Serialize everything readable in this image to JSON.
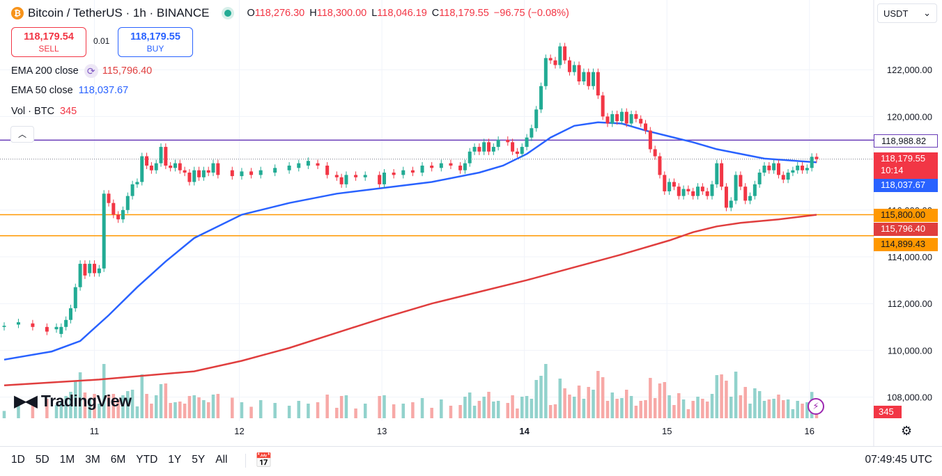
{
  "header": {
    "symbol": "Bitcoin / TetherUS · 1h · BINANCE",
    "logo_letter": "₿",
    "ohlc": [
      {
        "key": "O",
        "value": "118,276.30"
      },
      {
        "key": "H",
        "value": "118,300.00"
      },
      {
        "key": "L",
        "value": "118,046.19"
      },
      {
        "key": "C",
        "value": "118,179.55"
      },
      {
        "key": "",
        "value": "−96.75 (−0.08%)"
      }
    ]
  },
  "trade": {
    "sell_price": "118,179.54",
    "sell_label": "SELL",
    "spread": "0.01",
    "buy_price": "118,179.55",
    "buy_label": "BUY"
  },
  "indicators": {
    "ema200_name": "EMA 200 close",
    "ema200_value": "115,796.40",
    "ema50_name": "EMA 50 close",
    "ema50_value": "118,037.67",
    "vol_name": "Vol · BTC",
    "vol_value": "345"
  },
  "currency": "USDT",
  "brand": "TradingView",
  "time_ranges": [
    "1D",
    "5D",
    "1M",
    "3M",
    "6M",
    "YTD",
    "1Y",
    "5Y",
    "All"
  ],
  "clock": "07:49:45 UTC",
  "price_labels": {
    "level_118988": "118,988.82",
    "last_price": "118,179.55",
    "countdown": "10:14",
    "ema50": "118,037.67",
    "level_115800": "115,800.00",
    "ema200": "115,796.40",
    "level_114899": "114,899.43",
    "volume": "345"
  },
  "colors": {
    "up": "#22ab94",
    "down": "#f23645",
    "up_vol": "#92d2cc",
    "down_vol": "#f7a9a7",
    "ema50": "#2962ff",
    "ema200": "#e03e3e",
    "purple_level": "#673ab7",
    "orange_level": "#ff9800"
  },
  "chart_data": {
    "type": "candlestick",
    "y_tick_labels": [
      "108,000.00",
      "110,000.00",
      "112,000.00",
      "114,000.00",
      "116,000.00",
      "120,000.00",
      "122,000.00"
    ],
    "x_tick_labels": [
      "11",
      "12",
      "13",
      "14",
      "15",
      "16"
    ],
    "ylim": [
      107300,
      123400
    ],
    "horizontal_levels": [
      118988.82,
      115800.0,
      114899.43
    ],
    "series": [
      {
        "name": "EMA 200 close",
        "points": [
          [
            0,
            108500
          ],
          [
            20,
            108750
          ],
          [
            40,
            109100
          ],
          [
            50,
            109550
          ],
          [
            60,
            110100
          ],
          [
            70,
            110750
          ],
          [
            80,
            111400
          ],
          [
            90,
            112000
          ],
          [
            100,
            112500
          ],
          [
            110,
            113000
          ],
          [
            120,
            113550
          ],
          [
            130,
            114100
          ],
          [
            140,
            114700
          ],
          [
            145,
            115050
          ],
          [
            150,
            115300
          ],
          [
            155,
            115450
          ],
          [
            163,
            115600
          ],
          [
            171,
            115796.4
          ]
        ]
      },
      {
        "name": "EMA 50 close",
        "points": [
          [
            0,
            109600
          ],
          [
            10,
            109950
          ],
          [
            16,
            110400
          ],
          [
            22,
            111500
          ],
          [
            28,
            112700
          ],
          [
            34,
            113800
          ],
          [
            40,
            114800
          ],
          [
            50,
            115800
          ],
          [
            60,
            116300
          ],
          [
            70,
            116700
          ],
          [
            80,
            116950
          ],
          [
            90,
            117200
          ],
          [
            100,
            117600
          ],
          [
            105,
            117900
          ],
          [
            110,
            118400
          ],
          [
            115,
            119100
          ],
          [
            120,
            119600
          ],
          [
            125,
            119750
          ],
          [
            130,
            119700
          ],
          [
            135,
            119400
          ],
          [
            140,
            119150
          ],
          [
            145,
            118900
          ],
          [
            150,
            118600
          ],
          [
            160,
            118200
          ],
          [
            171,
            118037.67
          ]
        ]
      },
      {
        "name": "Vol · BTC",
        "values": []
      }
    ],
    "candles": [
      {
        "x": 0,
        "o": 111000,
        "c": 111050
      },
      {
        "x": 3,
        "o": 111100,
        "c": 111200
      },
      {
        "x": 6,
        "o": 111150,
        "c": 111000
      },
      {
        "x": 9,
        "o": 111000,
        "c": 110800
      },
      {
        "x": 11,
        "o": 110900,
        "c": 111000
      },
      {
        "x": 12,
        "o": 110700,
        "c": 111000
      },
      {
        "x": 13,
        "o": 111000,
        "c": 111300
      },
      {
        "x": 14,
        "o": 111300,
        "c": 111800
      },
      {
        "x": 15,
        "o": 111800,
        "c": 112700
      },
      {
        "x": 16,
        "o": 112700,
        "c": 113700
      },
      {
        "x": 17,
        "o": 113700,
        "c": 113200
      },
      {
        "x": 18,
        "o": 113300,
        "c": 113700
      },
      {
        "x": 19,
        "o": 113700,
        "c": 113300
      },
      {
        "x": 20,
        "o": 113300,
        "c": 113500
      },
      {
        "x": 21,
        "o": 113500,
        "c": 116700
      },
      {
        "x": 22,
        "o": 116700,
        "c": 116300
      },
      {
        "x": 23,
        "o": 116300,
        "c": 115800
      },
      {
        "x": 24,
        "o": 115800,
        "c": 115600
      },
      {
        "x": 25,
        "o": 115600,
        "c": 116000
      },
      {
        "x": 26,
        "o": 116000,
        "c": 116600
      },
      {
        "x": 27,
        "o": 116600,
        "c": 117100
      },
      {
        "x": 28,
        "o": 117100,
        "c": 117200
      },
      {
        "x": 29,
        "o": 117200,
        "c": 118300
      },
      {
        "x": 30,
        "o": 118300,
        "c": 117900
      },
      {
        "x": 31,
        "o": 117900,
        "c": 117700
      },
      {
        "x": 32,
        "o": 117700,
        "c": 118000
      },
      {
        "x": 33,
        "o": 118000,
        "c": 118700
      },
      {
        "x": 34,
        "o": 118700,
        "c": 117900
      },
      {
        "x": 35,
        "o": 117900,
        "c": 117800
      },
      {
        "x": 36,
        "o": 117800,
        "c": 118000
      },
      {
        "x": 37,
        "o": 118000,
        "c": 117700
      },
      {
        "x": 38,
        "o": 117700,
        "c": 117600
      },
      {
        "x": 39,
        "o": 117600,
        "c": 117200
      },
      {
        "x": 40,
        "o": 117200,
        "c": 117700
      },
      {
        "x": 41,
        "o": 117700,
        "c": 117400
      },
      {
        "x": 42,
        "o": 117400,
        "c": 117700
      },
      {
        "x": 43,
        "o": 117700,
        "c": 117600
      },
      {
        "x": 44,
        "o": 117600,
        "c": 118000
      },
      {
        "x": 45,
        "o": 118000,
        "c": 117500
      },
      {
        "x": 48,
        "o": 117700,
        "c": 117450
      },
      {
        "x": 50,
        "o": 117450,
        "c": 117650
      },
      {
        "x": 52,
        "o": 117650,
        "c": 117500
      },
      {
        "x": 54,
        "o": 117500,
        "c": 117700
      },
      {
        "x": 57,
        "o": 117600,
        "c": 117800
      },
      {
        "x": 60,
        "o": 117700,
        "c": 117900
      },
      {
        "x": 62,
        "o": 117800,
        "c": 118000
      },
      {
        "x": 64,
        "o": 117900,
        "c": 118100
      },
      {
        "x": 66,
        "o": 118000,
        "c": 117900
      },
      {
        "x": 68,
        "o": 117900,
        "c": 117500
      },
      {
        "x": 70,
        "o": 117500,
        "c": 117400
      },
      {
        "x": 71,
        "o": 117400,
        "c": 117100
      },
      {
        "x": 72,
        "o": 117100,
        "c": 117500
      },
      {
        "x": 74,
        "o": 117500,
        "c": 117400
      },
      {
        "x": 76,
        "o": 117400,
        "c": 117500
      },
      {
        "x": 79,
        "o": 117500,
        "c": 117100
      },
      {
        "x": 80,
        "o": 117100,
        "c": 117600
      },
      {
        "x": 82,
        "o": 117600,
        "c": 117500
      },
      {
        "x": 84,
        "o": 117500,
        "c": 117700
      },
      {
        "x": 86,
        "o": 117700,
        "c": 117600
      },
      {
        "x": 88,
        "o": 117600,
        "c": 117900
      },
      {
        "x": 90,
        "o": 117900,
        "c": 117800
      },
      {
        "x": 92,
        "o": 117800,
        "c": 118000
      },
      {
        "x": 94,
        "o": 118000,
        "c": 117900
      },
      {
        "x": 96,
        "o": 117900,
        "c": 117700
      },
      {
        "x": 97,
        "o": 117700,
        "c": 118000
      },
      {
        "x": 98,
        "o": 118000,
        "c": 118500
      },
      {
        "x": 99,
        "o": 118500,
        "c": 118700
      },
      {
        "x": 100,
        "o": 118700,
        "c": 118500
      },
      {
        "x": 101,
        "o": 118500,
        "c": 118900
      },
      {
        "x": 102,
        "o": 118900,
        "c": 118500
      },
      {
        "x": 103,
        "o": 118500,
        "c": 118700
      },
      {
        "x": 104,
        "o": 118700,
        "c": 119000
      },
      {
        "x": 106,
        "o": 119000,
        "c": 118900
      },
      {
        "x": 107,
        "o": 118900,
        "c": 118500
      },
      {
        "x": 108,
        "o": 118500,
        "c": 118400
      },
      {
        "x": 109,
        "o": 118400,
        "c": 118700
      },
      {
        "x": 110,
        "o": 118700,
        "c": 119100
      },
      {
        "x": 111,
        "o": 119100,
        "c": 119500
      },
      {
        "x": 112,
        "o": 119500,
        "c": 120300
      },
      {
        "x": 113,
        "o": 120300,
        "c": 121300
      },
      {
        "x": 114,
        "o": 121300,
        "c": 122500
      },
      {
        "x": 115,
        "o": 122500,
        "c": 122400
      },
      {
        "x": 116,
        "o": 122400,
        "c": 122200
      },
      {
        "x": 117,
        "o": 122200,
        "c": 123000
      },
      {
        "x": 118,
        "o": 123000,
        "c": 122400
      },
      {
        "x": 119,
        "o": 122400,
        "c": 121900
      },
      {
        "x": 120,
        "o": 121900,
        "c": 122200
      },
      {
        "x": 121,
        "o": 122200,
        "c": 121500
      },
      {
        "x": 122,
        "o": 121500,
        "c": 121900
      },
      {
        "x": 123,
        "o": 121900,
        "c": 121300
      },
      {
        "x": 124,
        "o": 121300,
        "c": 121900
      },
      {
        "x": 125,
        "o": 121900,
        "c": 120900
      },
      {
        "x": 126,
        "o": 120900,
        "c": 120000
      },
      {
        "x": 127,
        "o": 120000,
        "c": 119700
      },
      {
        "x": 128,
        "o": 119700,
        "c": 120100
      },
      {
        "x": 129,
        "o": 120100,
        "c": 119800
      },
      {
        "x": 130,
        "o": 119800,
        "c": 120200
      },
      {
        "x": 131,
        "o": 120200,
        "c": 119700
      },
      {
        "x": 132,
        "o": 119700,
        "c": 120100
      },
      {
        "x": 133,
        "o": 120100,
        "c": 119900
      },
      {
        "x": 134,
        "o": 119900,
        "c": 119700
      },
      {
        "x": 135,
        "o": 119700,
        "c": 119400
      },
      {
        "x": 136,
        "o": 119400,
        "c": 118600
      },
      {
        "x": 137,
        "o": 118600,
        "c": 118300
      },
      {
        "x": 138,
        "o": 118300,
        "c": 117500
      },
      {
        "x": 139,
        "o": 117500,
        "c": 116800
      },
      {
        "x": 140,
        "o": 116800,
        "c": 117200
      },
      {
        "x": 141,
        "o": 117200,
        "c": 117000
      },
      {
        "x": 142,
        "o": 117000,
        "c": 116600
      },
      {
        "x": 143,
        "o": 116600,
        "c": 116900
      },
      {
        "x": 144,
        "o": 116900,
        "c": 116800
      },
      {
        "x": 145,
        "o": 116800,
        "c": 116600
      },
      {
        "x": 146,
        "o": 116600,
        "c": 117000
      },
      {
        "x": 147,
        "o": 117000,
        "c": 116800
      },
      {
        "x": 148,
        "o": 116800,
        "c": 116600
      },
      {
        "x": 149,
        "o": 116600,
        "c": 117100
      },
      {
        "x": 150,
        "o": 117100,
        "c": 118000
      },
      {
        "x": 151,
        "o": 118000,
        "c": 117000
      },
      {
        "x": 152,
        "o": 117000,
        "c": 116100
      },
      {
        "x": 153,
        "o": 116100,
        "c": 116400
      },
      {
        "x": 154,
        "o": 116400,
        "c": 117500
      },
      {
        "x": 155,
        "o": 117500,
        "c": 117000
      },
      {
        "x": 156,
        "o": 117000,
        "c": 116400
      },
      {
        "x": 157,
        "o": 116400,
        "c": 116600
      },
      {
        "x": 158,
        "o": 116600,
        "c": 117100
      },
      {
        "x": 159,
        "o": 117100,
        "c": 117600
      },
      {
        "x": 160,
        "o": 117600,
        "c": 117900
      },
      {
        "x": 161,
        "o": 117900,
        "c": 117700
      },
      {
        "x": 162,
        "o": 117700,
        "c": 118000
      },
      {
        "x": 163,
        "o": 118000,
        "c": 117500
      },
      {
        "x": 164,
        "o": 117500,
        "c": 117300
      },
      {
        "x": 165,
        "o": 117300,
        "c": 117600
      },
      {
        "x": 166,
        "o": 117600,
        "c": 117700
      },
      {
        "x": 167,
        "o": 117700,
        "c": 117900
      },
      {
        "x": 168,
        "o": 117900,
        "c": 117700
      },
      {
        "x": 169,
        "o": 117700,
        "c": 117800
      },
      {
        "x": 170,
        "o": 117800,
        "c": 118276.3
      },
      {
        "x": 171,
        "o": 118276.3,
        "c": 118179.55
      }
    ]
  }
}
